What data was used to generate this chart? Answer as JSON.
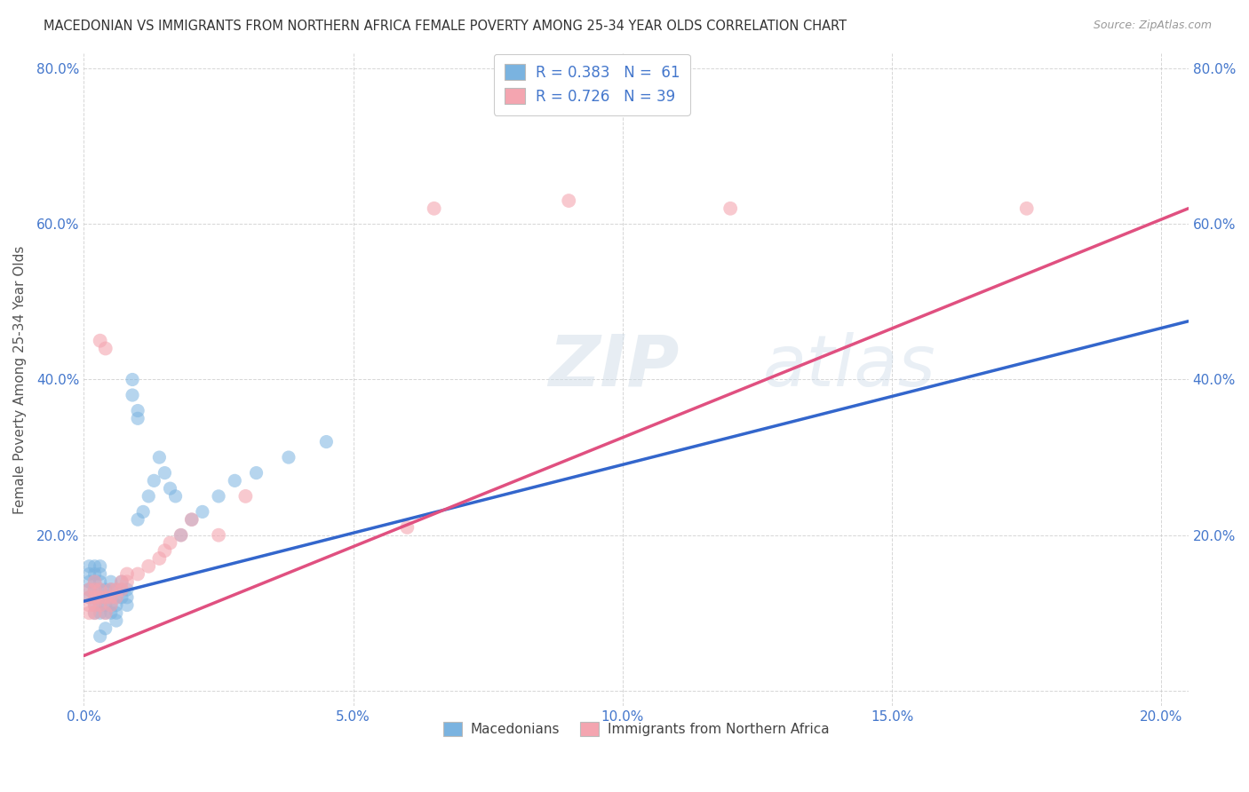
{
  "title": "MACEDONIAN VS IMMIGRANTS FROM NORTHERN AFRICA FEMALE POVERTY AMONG 25-34 YEAR OLDS CORRELATION CHART",
  "source": "Source: ZipAtlas.com",
  "ylabel": "Female Poverty Among 25-34 Year Olds",
  "xlim": [
    0.0,
    0.205
  ],
  "ylim": [
    -0.02,
    0.82
  ],
  "xticks": [
    0.0,
    0.05,
    0.1,
    0.15,
    0.2
  ],
  "yticks": [
    0.0,
    0.2,
    0.4,
    0.6,
    0.8
  ],
  "blue_color": "#7ab3e0",
  "pink_color": "#f4a5b0",
  "blue_line_color": "#3366cc",
  "pink_line_color": "#e05080",
  "watermark_zip": "ZIP",
  "watermark_atlas": "atlas",
  "blue_scatter_x": [
    0.001,
    0.001,
    0.001,
    0.001,
    0.001,
    0.002,
    0.002,
    0.002,
    0.002,
    0.002,
    0.002,
    0.002,
    0.003,
    0.003,
    0.003,
    0.003,
    0.003,
    0.003,
    0.003,
    0.003,
    0.004,
    0.004,
    0.004,
    0.004,
    0.004,
    0.005,
    0.005,
    0.005,
    0.005,
    0.005,
    0.006,
    0.006,
    0.006,
    0.006,
    0.006,
    0.007,
    0.007,
    0.007,
    0.008,
    0.008,
    0.008,
    0.009,
    0.009,
    0.01,
    0.01,
    0.01,
    0.011,
    0.012,
    0.013,
    0.014,
    0.015,
    0.016,
    0.017,
    0.018,
    0.02,
    0.022,
    0.025,
    0.028,
    0.032,
    0.038,
    0.045
  ],
  "blue_scatter_y": [
    0.13,
    0.14,
    0.12,
    0.15,
    0.16,
    0.12,
    0.13,
    0.14,
    0.15,
    0.1,
    0.11,
    0.16,
    0.1,
    0.11,
    0.12,
    0.13,
    0.14,
    0.15,
    0.16,
    0.07,
    0.1,
    0.11,
    0.12,
    0.13,
    0.08,
    0.1,
    0.11,
    0.12,
    0.13,
    0.14,
    0.11,
    0.12,
    0.13,
    0.1,
    0.09,
    0.12,
    0.13,
    0.14,
    0.11,
    0.12,
    0.13,
    0.38,
    0.4,
    0.22,
    0.35,
    0.36,
    0.23,
    0.25,
    0.27,
    0.3,
    0.28,
    0.26,
    0.25,
    0.2,
    0.22,
    0.23,
    0.25,
    0.27,
    0.28,
    0.3,
    0.32
  ],
  "pink_scatter_x": [
    0.001,
    0.001,
    0.001,
    0.001,
    0.002,
    0.002,
    0.002,
    0.002,
    0.002,
    0.003,
    0.003,
    0.003,
    0.003,
    0.004,
    0.004,
    0.004,
    0.005,
    0.005,
    0.005,
    0.006,
    0.006,
    0.007,
    0.007,
    0.008,
    0.008,
    0.01,
    0.012,
    0.014,
    0.015,
    0.016,
    0.018,
    0.02,
    0.025,
    0.03,
    0.06,
    0.065,
    0.09,
    0.12,
    0.175
  ],
  "pink_scatter_y": [
    0.1,
    0.12,
    0.11,
    0.13,
    0.1,
    0.11,
    0.12,
    0.13,
    0.14,
    0.11,
    0.12,
    0.13,
    0.45,
    0.1,
    0.12,
    0.44,
    0.11,
    0.12,
    0.13,
    0.12,
    0.13,
    0.13,
    0.14,
    0.14,
    0.15,
    0.15,
    0.16,
    0.17,
    0.18,
    0.19,
    0.2,
    0.22,
    0.2,
    0.25,
    0.21,
    0.62,
    0.63,
    0.62,
    0.62
  ],
  "blue_line_x0": 0.0,
  "blue_line_x1": 0.205,
  "blue_line_y0": 0.115,
  "blue_line_y1": 0.475,
  "pink_line_x0": 0.0,
  "pink_line_x1": 0.205,
  "pink_line_y0": 0.045,
  "pink_line_y1": 0.62
}
